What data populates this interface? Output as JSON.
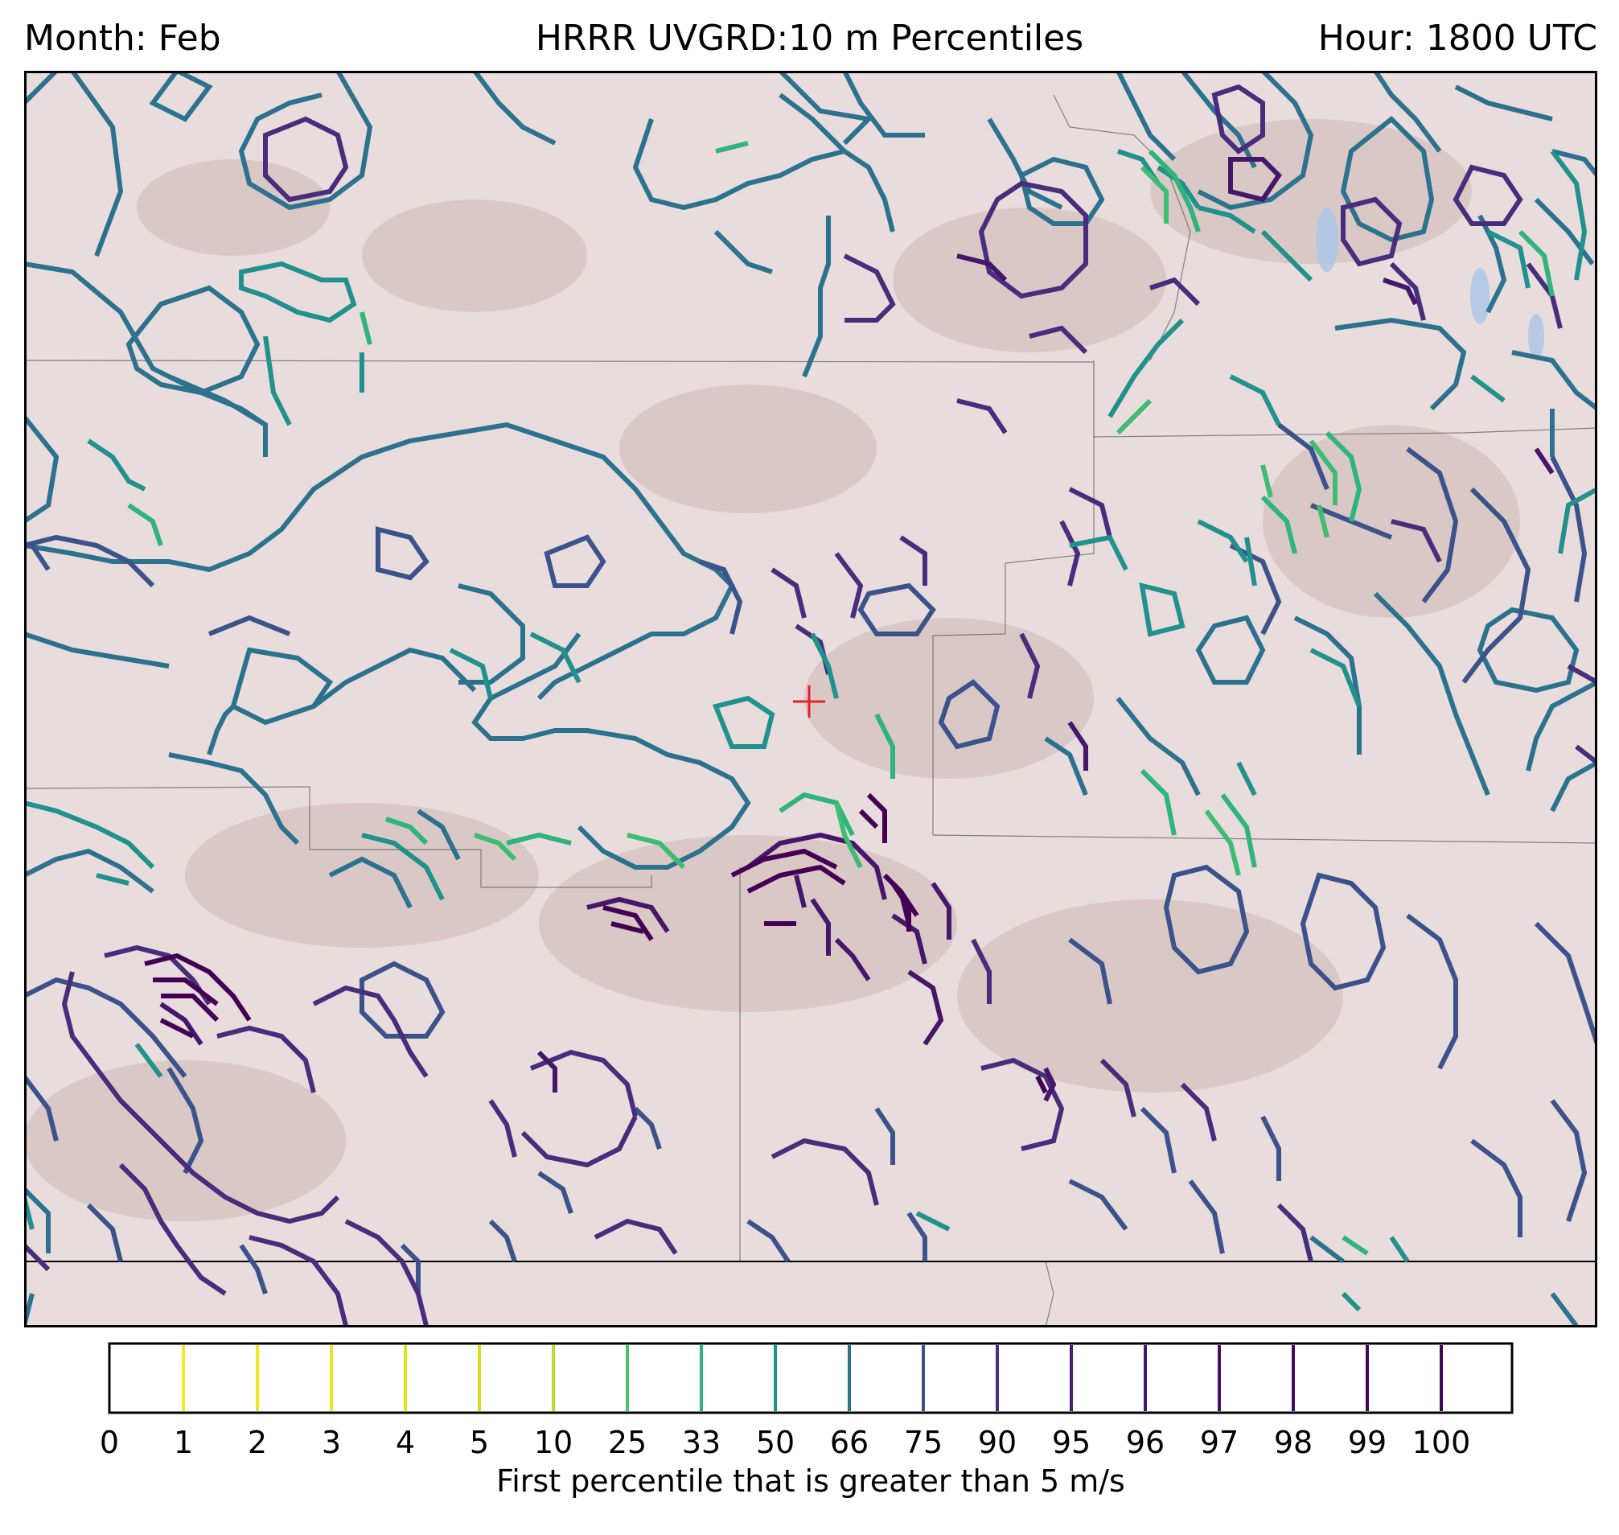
{
  "header": {
    "left": "Month: Feb",
    "center": "HRRR UVGRD:10 m Percentiles",
    "right": "Hour: 1800 UTC"
  },
  "map": {
    "background_color": "#e8dcdc",
    "marker": {
      "symbol": "+",
      "color": "#e8202a"
    }
  },
  "colorbar": {
    "label": "First percentile that is greater than 5 m/s",
    "levels": [
      {
        "label": "0",
        "color": null
      },
      {
        "label": "1",
        "color": "#fde725"
      },
      {
        "label": "2",
        "color": "#f6e620"
      },
      {
        "label": "3",
        "color": "#ece51b"
      },
      {
        "label": "4",
        "color": "#e2e418"
      },
      {
        "label": "5",
        "color": "#d5e21a"
      },
      {
        "label": "10",
        "color": "#bade28"
      },
      {
        "label": "25",
        "color": "#4ac16d"
      },
      {
        "label": "33",
        "color": "#2fb47c"
      },
      {
        "label": "50",
        "color": "#21918c"
      },
      {
        "label": "66",
        "color": "#2c728e"
      },
      {
        "label": "75",
        "color": "#3b528b"
      },
      {
        "label": "90",
        "color": "#472d7b"
      },
      {
        "label": "95",
        "color": "#471d6f"
      },
      {
        "label": "96",
        "color": "#46166b"
      },
      {
        "label": "97",
        "color": "#461065"
      },
      {
        "label": "98",
        "color": "#450a60"
      },
      {
        "label": "99",
        "color": "#44055c"
      },
      {
        "label": "100",
        "color": "#440154"
      }
    ]
  },
  "contour_colors": {
    "c25": "#3fbc73",
    "c33": "#2fb47c",
    "c50": "#21918c",
    "c66": "#2c728e",
    "c75": "#3b528b",
    "c90": "#472d7b",
    "c95": "#46166b",
    "c100": "#440154"
  }
}
